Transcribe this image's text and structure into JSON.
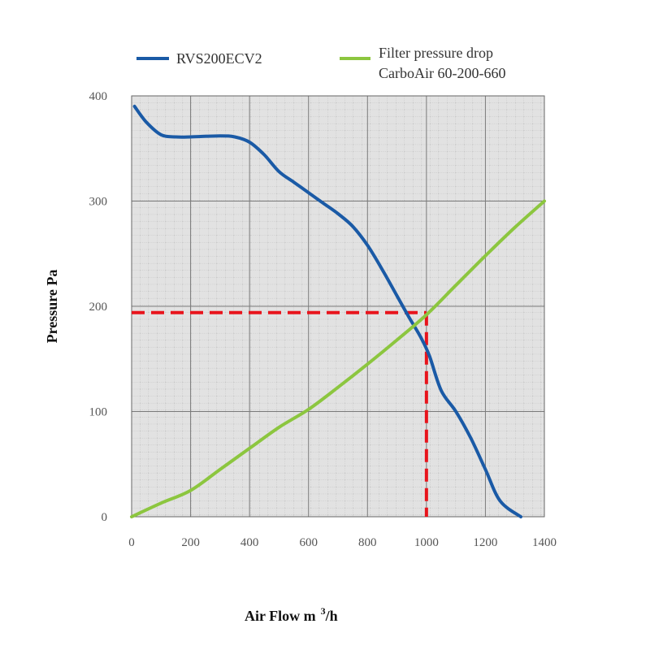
{
  "chart_data": {
    "type": "line",
    "xlabel": "Air Flow m",
    "xlabel_sup": "3",
    "xlabel_suffix": "/h",
    "ylabel": "Pressure Pa",
    "xlim": [
      0,
      1400
    ],
    "ylim": [
      0,
      400
    ],
    "x_ticks": [
      "0",
      "200",
      "400",
      "600",
      "800",
      "1000",
      "1200",
      "1400"
    ],
    "y_ticks": [
      "0",
      "100",
      "200",
      "300",
      "400"
    ],
    "grid": true,
    "legend_position": "top",
    "series": [
      {
        "name": "RVS200ECV2",
        "color": "#1a5aa6",
        "points": [
          [
            10,
            390
          ],
          [
            50,
            375
          ],
          [
            100,
            363
          ],
          [
            150,
            361
          ],
          [
            200,
            361
          ],
          [
            300,
            362
          ],
          [
            350,
            361
          ],
          [
            400,
            356
          ],
          [
            450,
            344
          ],
          [
            500,
            328
          ],
          [
            550,
            318
          ],
          [
            600,
            308
          ],
          [
            650,
            298
          ],
          [
            700,
            288
          ],
          [
            750,
            276
          ],
          [
            800,
            258
          ],
          [
            850,
            235
          ],
          [
            900,
            210
          ],
          [
            940,
            190
          ],
          [
            980,
            171
          ],
          [
            1010,
            153
          ],
          [
            1050,
            120
          ],
          [
            1100,
            100
          ],
          [
            1150,
            75
          ],
          [
            1200,
            45
          ],
          [
            1250,
            15
          ],
          [
            1320,
            0
          ]
        ]
      },
      {
        "name": "Filter pressure drop",
        "name_line2": "CarboAir 60-200-660",
        "color": "#8cc63f",
        "points": [
          [
            0,
            0
          ],
          [
            100,
            13
          ],
          [
            200,
            25
          ],
          [
            300,
            45
          ],
          [
            400,
            65
          ],
          [
            500,
            85
          ],
          [
            600,
            102
          ],
          [
            700,
            123
          ],
          [
            800,
            145
          ],
          [
            900,
            168
          ],
          [
            1000,
            192
          ],
          [
            1100,
            220
          ],
          [
            1200,
            248
          ],
          [
            1300,
            275
          ],
          [
            1400,
            300
          ]
        ]
      }
    ],
    "operating_point": {
      "x": 1000,
      "y": 194,
      "color": "#e8141c"
    }
  }
}
